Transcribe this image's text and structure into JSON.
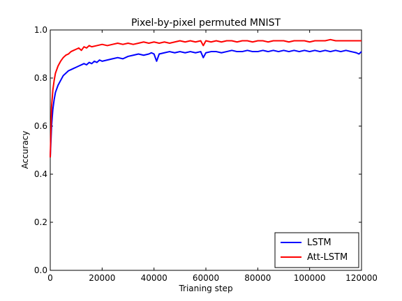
{
  "chart_data": {
    "type": "line",
    "title": "Pixel-by-pixel permuted MNIST",
    "xlabel": "Trianing step",
    "ylabel": "Accuracy",
    "xlim": [
      0,
      120000
    ],
    "ylim": [
      0.0,
      1.0
    ],
    "x_ticks": [
      0,
      20000,
      40000,
      60000,
      80000,
      100000,
      120000
    ],
    "y_ticks": [
      0.0,
      0.2,
      0.4,
      0.6,
      0.8,
      1.0
    ],
    "x_tick_labels": [
      "0",
      "20000",
      "40000",
      "60000",
      "80000",
      "100000",
      "120000"
    ],
    "y_tick_labels": [
      "0.0",
      "0.2",
      "0.4",
      "0.6",
      "0.8",
      "1.0"
    ],
    "grid": false,
    "legend_position": "lower-right",
    "series": [
      {
        "name": "LSTM",
        "color": "#0000ff",
        "points": [
          [
            0,
            0.47
          ],
          [
            500,
            0.6
          ],
          [
            1000,
            0.67
          ],
          [
            1500,
            0.71
          ],
          [
            2000,
            0.74
          ],
          [
            3000,
            0.77
          ],
          [
            4000,
            0.79
          ],
          [
            5000,
            0.81
          ],
          [
            6000,
            0.82
          ],
          [
            7000,
            0.83
          ],
          [
            8000,
            0.835
          ],
          [
            9000,
            0.84
          ],
          [
            10000,
            0.845
          ],
          [
            11000,
            0.85
          ],
          [
            12000,
            0.855
          ],
          [
            13000,
            0.86
          ],
          [
            14000,
            0.855
          ],
          [
            15000,
            0.865
          ],
          [
            16000,
            0.86
          ],
          [
            17000,
            0.87
          ],
          [
            18000,
            0.865
          ],
          [
            19000,
            0.875
          ],
          [
            20000,
            0.87
          ],
          [
            22000,
            0.875
          ],
          [
            24000,
            0.88
          ],
          [
            26000,
            0.885
          ],
          [
            28000,
            0.88
          ],
          [
            30000,
            0.89
          ],
          [
            32000,
            0.895
          ],
          [
            34000,
            0.9
          ],
          [
            36000,
            0.895
          ],
          [
            38000,
            0.9
          ],
          [
            39000,
            0.905
          ],
          [
            40000,
            0.9
          ],
          [
            41000,
            0.87
          ],
          [
            42000,
            0.9
          ],
          [
            44000,
            0.905
          ],
          [
            46000,
            0.91
          ],
          [
            48000,
            0.905
          ],
          [
            50000,
            0.91
          ],
          [
            52000,
            0.905
          ],
          [
            54000,
            0.91
          ],
          [
            56000,
            0.905
          ],
          [
            58000,
            0.91
          ],
          [
            59000,
            0.885
          ],
          [
            60000,
            0.905
          ],
          [
            62000,
            0.91
          ],
          [
            64000,
            0.91
          ],
          [
            66000,
            0.905
          ],
          [
            68000,
            0.91
          ],
          [
            70000,
            0.915
          ],
          [
            72000,
            0.91
          ],
          [
            74000,
            0.91
          ],
          [
            76000,
            0.915
          ],
          [
            78000,
            0.91
          ],
          [
            80000,
            0.91
          ],
          [
            82000,
            0.915
          ],
          [
            84000,
            0.91
          ],
          [
            86000,
            0.915
          ],
          [
            88000,
            0.91
          ],
          [
            90000,
            0.915
          ],
          [
            92000,
            0.91
          ],
          [
            94000,
            0.915
          ],
          [
            96000,
            0.91
          ],
          [
            98000,
            0.915
          ],
          [
            100000,
            0.91
          ],
          [
            102000,
            0.915
          ],
          [
            104000,
            0.91
          ],
          [
            106000,
            0.915
          ],
          [
            108000,
            0.91
          ],
          [
            110000,
            0.915
          ],
          [
            112000,
            0.91
          ],
          [
            114000,
            0.915
          ],
          [
            116000,
            0.91
          ],
          [
            118000,
            0.905
          ],
          [
            119000,
            0.9
          ],
          [
            120000,
            0.91
          ]
        ]
      },
      {
        "name": "Att-LSTM",
        "color": "#ff0000",
        "points": [
          [
            0,
            0.47
          ],
          [
            500,
            0.68
          ],
          [
            1000,
            0.75
          ],
          [
            1500,
            0.79
          ],
          [
            2000,
            0.82
          ],
          [
            3000,
            0.85
          ],
          [
            4000,
            0.87
          ],
          [
            5000,
            0.885
          ],
          [
            6000,
            0.895
          ],
          [
            7000,
            0.9
          ],
          [
            8000,
            0.91
          ],
          [
            9000,
            0.915
          ],
          [
            10000,
            0.92
          ],
          [
            11000,
            0.925
          ],
          [
            12000,
            0.915
          ],
          [
            13000,
            0.93
          ],
          [
            14000,
            0.925
          ],
          [
            15000,
            0.935
          ],
          [
            16000,
            0.93
          ],
          [
            18000,
            0.935
          ],
          [
            20000,
            0.94
          ],
          [
            22000,
            0.935
          ],
          [
            24000,
            0.94
          ],
          [
            26000,
            0.945
          ],
          [
            28000,
            0.94
          ],
          [
            30000,
            0.945
          ],
          [
            32000,
            0.94
          ],
          [
            34000,
            0.945
          ],
          [
            36000,
            0.95
          ],
          [
            38000,
            0.945
          ],
          [
            40000,
            0.95
          ],
          [
            42000,
            0.945
          ],
          [
            44000,
            0.95
          ],
          [
            46000,
            0.945
          ],
          [
            48000,
            0.95
          ],
          [
            50000,
            0.955
          ],
          [
            52000,
            0.95
          ],
          [
            54000,
            0.955
          ],
          [
            56000,
            0.95
          ],
          [
            58000,
            0.955
          ],
          [
            59000,
            0.935
          ],
          [
            60000,
            0.955
          ],
          [
            62000,
            0.95
          ],
          [
            64000,
            0.955
          ],
          [
            66000,
            0.95
          ],
          [
            68000,
            0.955
          ],
          [
            70000,
            0.955
          ],
          [
            72000,
            0.95
          ],
          [
            74000,
            0.955
          ],
          [
            76000,
            0.955
          ],
          [
            78000,
            0.95
          ],
          [
            80000,
            0.955
          ],
          [
            82000,
            0.955
          ],
          [
            84000,
            0.95
          ],
          [
            86000,
            0.955
          ],
          [
            88000,
            0.955
          ],
          [
            90000,
            0.955
          ],
          [
            92000,
            0.95
          ],
          [
            94000,
            0.955
          ],
          [
            96000,
            0.955
          ],
          [
            98000,
            0.955
          ],
          [
            100000,
            0.95
          ],
          [
            102000,
            0.955
          ],
          [
            104000,
            0.955
          ],
          [
            106000,
            0.955
          ],
          [
            108000,
            0.96
          ],
          [
            110000,
            0.955
          ],
          [
            112000,
            0.955
          ],
          [
            114000,
            0.955
          ],
          [
            116000,
            0.955
          ],
          [
            118000,
            0.955
          ],
          [
            120000,
            0.955
          ]
        ]
      }
    ]
  }
}
